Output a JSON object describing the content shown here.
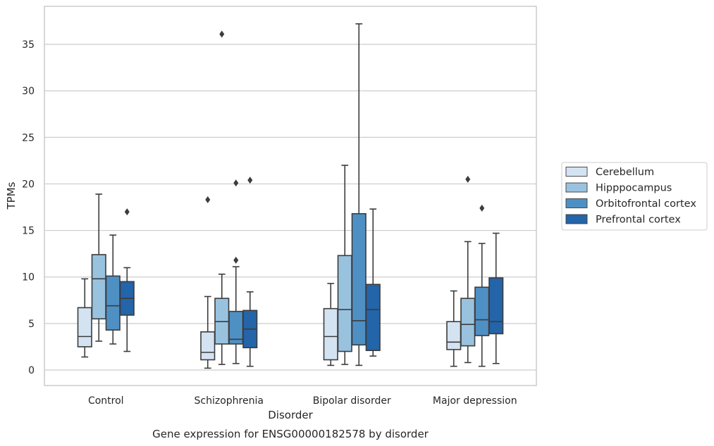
{
  "chart_data": {
    "type": "box",
    "caption": "Gene expression for ENSG00000182578 by disorder",
    "xlabel": "Disorder",
    "ylabel": "TPMs",
    "ylim": [
      -1.5,
      39.5
    ],
    "yticks": [
      0,
      5,
      10,
      15,
      20,
      25,
      30,
      35
    ],
    "grid": "horizontal",
    "legend_placement": "right",
    "categories": [
      "Control",
      "Schizophrenia",
      "Bipolar disorder",
      "Major depression"
    ],
    "series": [
      {
        "name": "Cerebellum",
        "color": "#d4e3f2",
        "boxes": [
          {
            "whislo": 1.4,
            "q1": 2.5,
            "med": 3.6,
            "q3": 6.7,
            "whishi": 9.8,
            "fliers": []
          },
          {
            "whislo": 0.2,
            "q1": 1.1,
            "med": 1.9,
            "q3": 4.1,
            "whishi": 7.9,
            "fliers": [
              18.3
            ]
          },
          {
            "whislo": 0.5,
            "q1": 1.1,
            "med": 3.6,
            "q3": 6.6,
            "whishi": 9.3,
            "fliers": []
          },
          {
            "whislo": 0.4,
            "q1": 2.2,
            "med": 3.0,
            "q3": 5.2,
            "whishi": 8.5,
            "fliers": []
          }
        ]
      },
      {
        "name": "Hipppocampus",
        "color": "#99c2df",
        "boxes": [
          {
            "whislo": 3.1,
            "q1": 5.5,
            "med": 9.8,
            "q3": 12.4,
            "whishi": 18.9,
            "fliers": []
          },
          {
            "whislo": 0.6,
            "q1": 2.8,
            "med": 5.2,
            "q3": 7.7,
            "whishi": 10.3,
            "fliers": [
              36.1
            ]
          },
          {
            "whislo": 0.6,
            "q1": 2.0,
            "med": 6.5,
            "q3": 12.3,
            "whishi": 22.0,
            "fliers": []
          },
          {
            "whislo": 0.8,
            "q1": 2.6,
            "med": 4.9,
            "q3": 7.7,
            "whishi": 13.8,
            "fliers": [
              20.5
            ]
          }
        ]
      },
      {
        "name": "Orbitofrontal cortex",
        "color": "#4f90c4",
        "boxes": [
          {
            "whislo": 2.8,
            "q1": 4.3,
            "med": 6.9,
            "q3": 10.1,
            "whishi": 14.5,
            "fliers": []
          },
          {
            "whislo": 0.7,
            "q1": 2.8,
            "med": 3.3,
            "q3": 6.3,
            "whishi": 11.1,
            "fliers": [
              20.1,
              11.8
            ]
          },
          {
            "whislo": 0.5,
            "q1": 2.7,
            "med": 5.3,
            "q3": 16.8,
            "whishi": 37.2,
            "fliers": []
          },
          {
            "whislo": 0.4,
            "q1": 3.7,
            "med": 5.4,
            "q3": 8.9,
            "whishi": 13.6,
            "fliers": [
              17.4
            ]
          }
        ]
      },
      {
        "name": "Prefrontal cortex",
        "color": "#2464a8",
        "boxes": [
          {
            "whislo": 2.0,
            "q1": 5.9,
            "med": 7.7,
            "q3": 9.5,
            "whishi": 11.0,
            "fliers": [
              17.0
            ]
          },
          {
            "whislo": 0.4,
            "q1": 2.4,
            "med": 4.4,
            "q3": 6.4,
            "whishi": 8.4,
            "fliers": [
              20.4
            ]
          },
          {
            "whislo": 1.5,
            "q1": 2.1,
            "med": 6.5,
            "q3": 9.2,
            "whishi": 17.3,
            "fliers": []
          },
          {
            "whislo": 0.7,
            "q1": 3.9,
            "med": 5.2,
            "q3": 9.9,
            "whishi": 14.7,
            "fliers": []
          }
        ]
      }
    ]
  }
}
